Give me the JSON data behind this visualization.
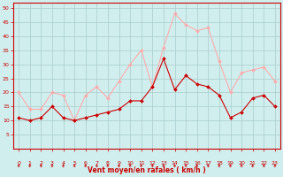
{
  "x": [
    0,
    1,
    2,
    3,
    4,
    5,
    6,
    7,
    8,
    9,
    10,
    11,
    12,
    13,
    14,
    15,
    16,
    17,
    18,
    19,
    20,
    21,
    22,
    23
  ],
  "wind_avg": [
    11,
    10,
    11,
    15,
    11,
    10,
    11,
    12,
    13,
    14,
    17,
    17,
    22,
    32,
    21,
    26,
    23,
    22,
    19,
    11,
    13,
    18,
    19,
    15
  ],
  "wind_gust": [
    20,
    14,
    14,
    20,
    19,
    10,
    19,
    22,
    18,
    24,
    30,
    35,
    22,
    36,
    48,
    44,
    42,
    43,
    31,
    20,
    27,
    28,
    29,
    24
  ],
  "xlabel": "Vent moyen/en rafales ( km/h )",
  "ylim": [
    0,
    52
  ],
  "yticks": [
    5,
    10,
    15,
    20,
    25,
    30,
    35,
    40,
    45,
    50
  ],
  "xticks": [
    0,
    1,
    2,
    3,
    4,
    5,
    6,
    7,
    8,
    9,
    10,
    11,
    12,
    13,
    14,
    15,
    16,
    17,
    18,
    19,
    20,
    21,
    22,
    23
  ],
  "avg_color": "#cc0000",
  "gust_color": "#ffaaaa",
  "bg_color": "#d0eeee",
  "grid_color": "#aacccc",
  "xlabel_color": "#cc0000",
  "tick_color": "#cc0000",
  "axis_color": "#cc0000",
  "arrow_color": "#cc0000"
}
